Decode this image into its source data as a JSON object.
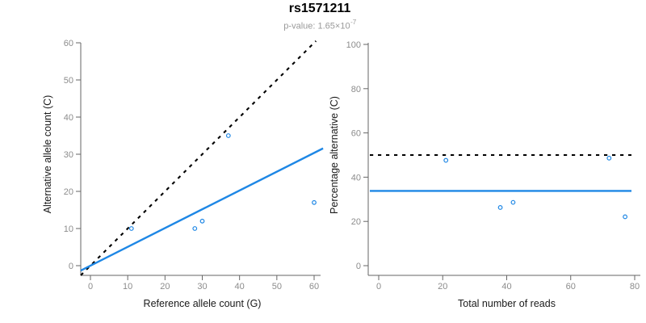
{
  "figure": {
    "title": "rs1571211",
    "subtitle_prefix": "p-value: 1.65×10",
    "subtitle_exponent": "-7"
  },
  "colors": {
    "accent_blue": "#1E87E5",
    "dotted_black": "#000000",
    "axis_line": "#666666",
    "tick_label": "#8C8C8C",
    "axis_title": "#1A1A1A",
    "subtitle_gray": "#999999",
    "background": "#FFFFFF"
  },
  "chart_data": [
    {
      "type": "scatter",
      "panel": "left",
      "xlabel": "Reference allele count (G)",
      "ylabel": "Alternative allele count (C)",
      "xlim": [
        0,
        60
      ],
      "ylim": [
        0,
        60
      ],
      "xticks": [
        0,
        10,
        20,
        30,
        40,
        50,
        60
      ],
      "yticks": [
        0,
        10,
        20,
        30,
        40,
        50,
        60
      ],
      "grid": false,
      "points": [
        {
          "x": 11,
          "y": 10
        },
        {
          "x": 28,
          "y": 10
        },
        {
          "x": 30,
          "y": 12
        },
        {
          "x": 37,
          "y": 35
        },
        {
          "x": 60,
          "y": 17
        }
      ],
      "lines": [
        {
          "label": "identity-line",
          "style": "dotted",
          "slope": 1,
          "intercept": 0
        },
        {
          "label": "fit-line",
          "style": "solid",
          "slope": 0.506,
          "intercept": 0
        }
      ]
    },
    {
      "type": "scatter",
      "panel": "right",
      "xlabel": "Total number of reads",
      "ylabel": "Percentage alternative (C)",
      "xlim": [
        0,
        80
      ],
      "ylim": [
        0,
        100
      ],
      "xticks": [
        0,
        20,
        40,
        60,
        80
      ],
      "yticks": [
        0,
        20,
        40,
        60,
        80,
        100
      ],
      "grid": false,
      "points": [
        {
          "x": 21,
          "y": 47.6
        },
        {
          "x": 38,
          "y": 26.3
        },
        {
          "x": 42,
          "y": 28.6
        },
        {
          "x": 72,
          "y": 48.6
        },
        {
          "x": 77,
          "y": 22.1
        }
      ],
      "lines": [
        {
          "label": "expected-50pct-line",
          "style": "dotted",
          "y": 50
        },
        {
          "label": "mean-percentage-line",
          "style": "solid",
          "y": 33.8
        }
      ]
    }
  ]
}
